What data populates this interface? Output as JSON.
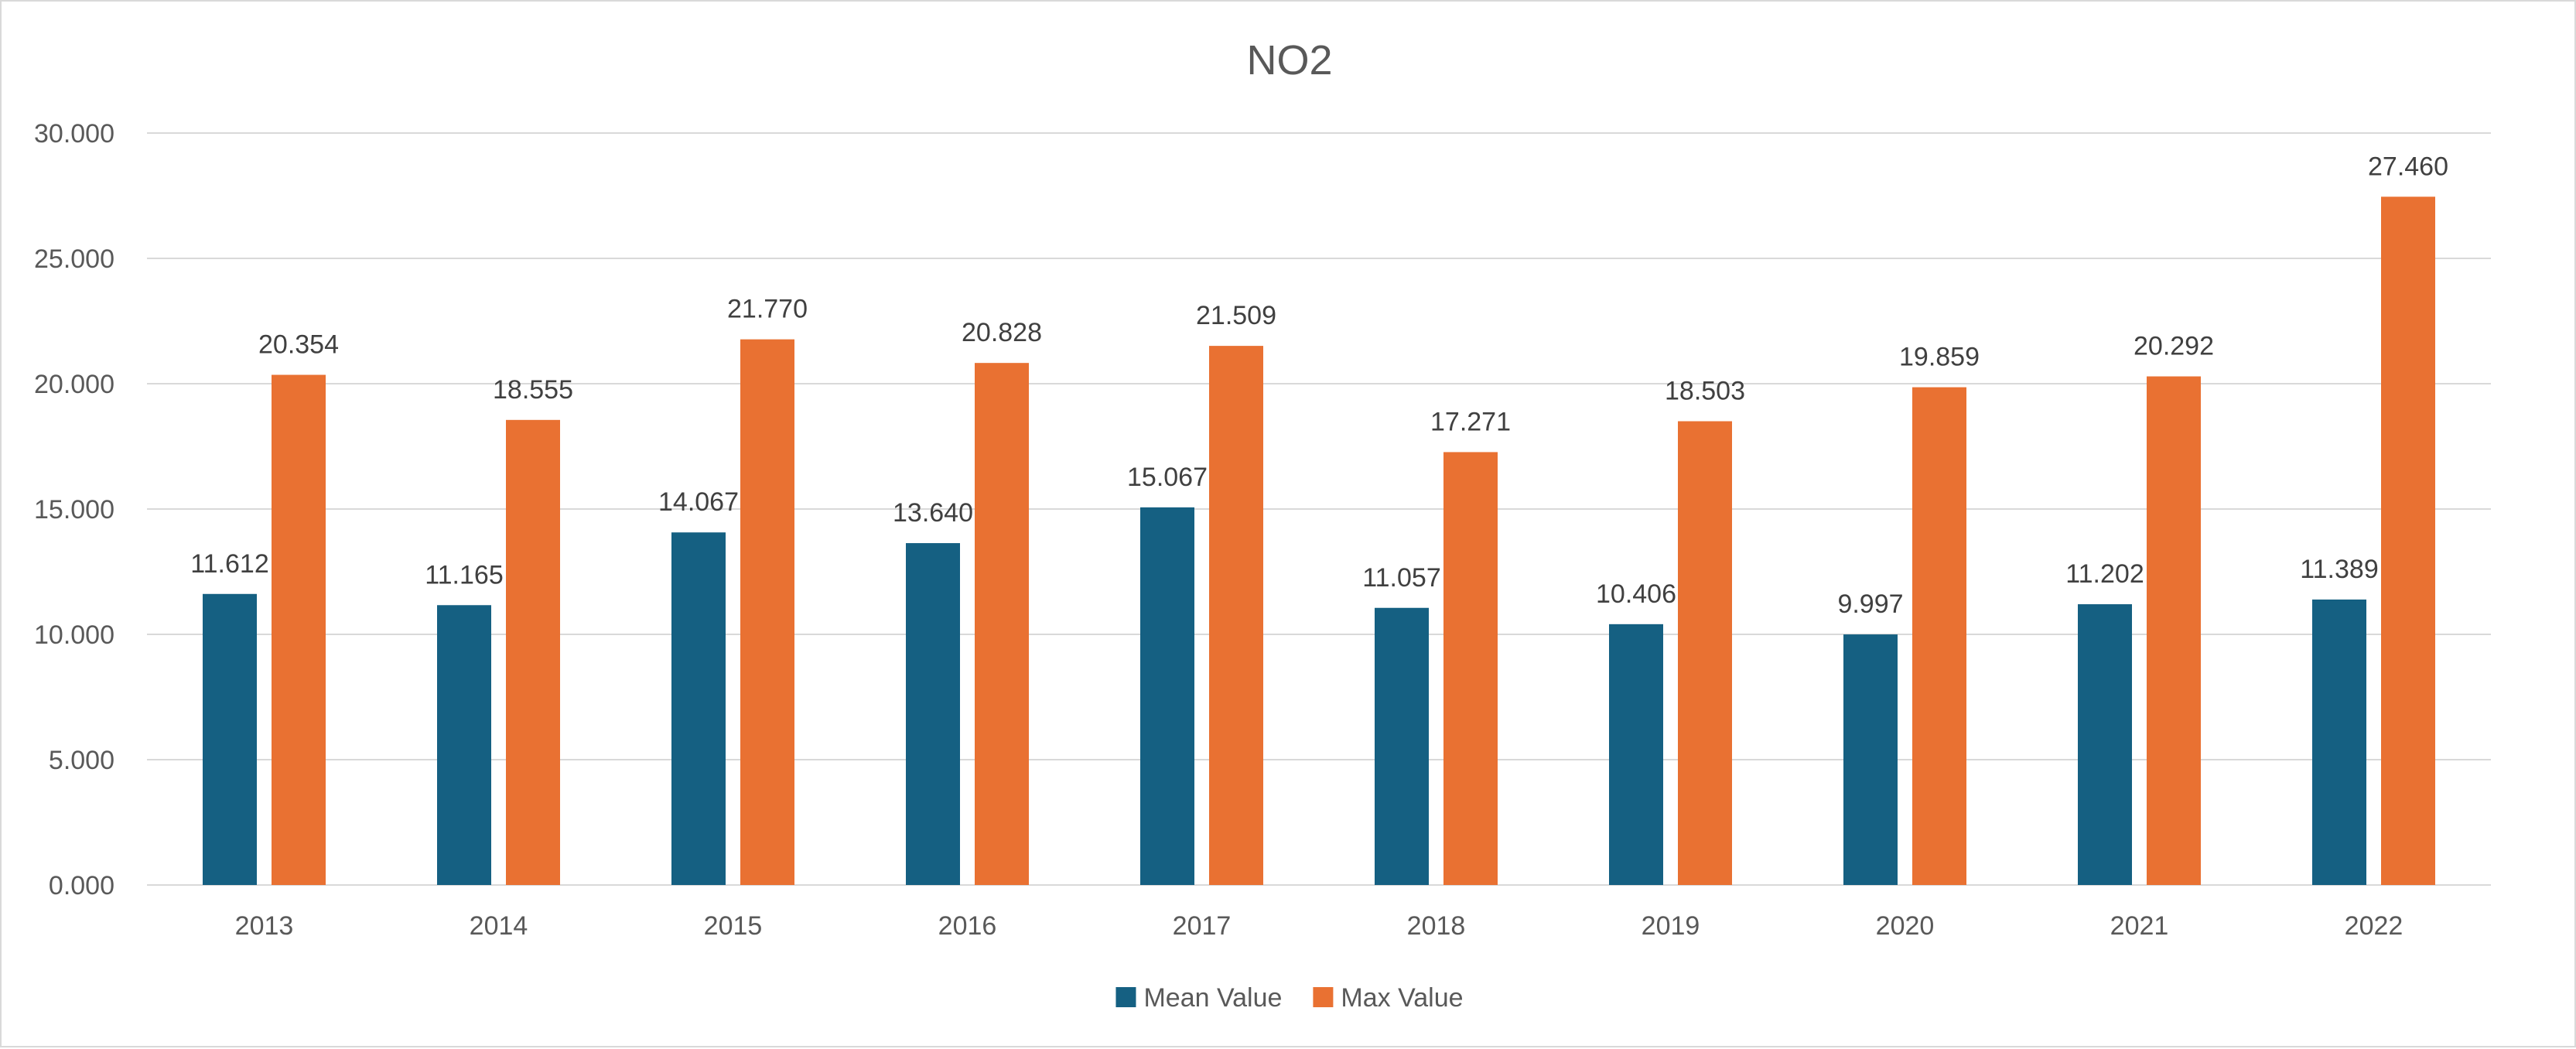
{
  "chart_data": {
    "type": "bar",
    "title": "NO2",
    "xlabel": "",
    "ylabel": "",
    "categories": [
      "2013",
      "2014",
      "2015",
      "2016",
      "2017",
      "2018",
      "2019",
      "2020",
      "2021",
      "2022"
    ],
    "series": [
      {
        "name": "Mean Value",
        "color": "#156082",
        "values": [
          11.612,
          11.165,
          14.067,
          13.64,
          15.067,
          11.057,
          10.406,
          9.997,
          11.202,
          11.389
        ],
        "labels": [
          "11.612",
          "11.165",
          "14.067",
          "13.640",
          "15.067",
          "11.057",
          "10.406",
          "9.997",
          "11.202",
          "11.389"
        ]
      },
      {
        "name": "Max Value",
        "color": "#E97132",
        "values": [
          20.354,
          18.555,
          21.77,
          20.828,
          21.509,
          17.271,
          18.503,
          19.859,
          20.292,
          27.46
        ],
        "labels": [
          "20.354",
          "18.555",
          "21.770",
          "20.828",
          "21.509",
          "17.271",
          "18.503",
          "19.859",
          "20.292",
          "27.460"
        ]
      }
    ],
    "ylim": [
      0,
      30
    ],
    "yticks": [
      0,
      5,
      10,
      15,
      20,
      25,
      30
    ],
    "ytick_labels": [
      "0.000",
      "5.000",
      "10.000",
      "15.000",
      "20.000",
      "25.000",
      "30.000"
    ],
    "grid": true,
    "legend_position": "bottom",
    "gridline_color": "#d9d9d9",
    "axis_text_color": "#595959"
  }
}
